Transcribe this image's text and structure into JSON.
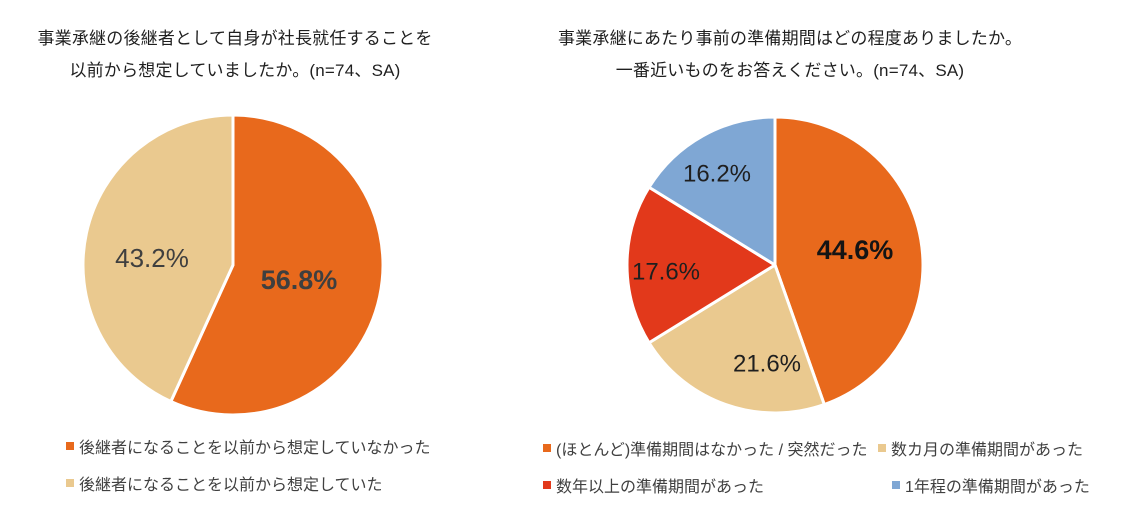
{
  "page_background": "#ffffff",
  "chart_data": [
    {
      "type": "pie",
      "title_lines": [
        "事業承継の後継者として自身が社長就任することを",
        "以前から想定していましたか。(n=74、SA)"
      ],
      "start_angle_deg": 0,
      "direction": "clockwise",
      "legend_position": "bottom",
      "slices": [
        {
          "label": "後継者になることを以前から想定していなかった",
          "value": 56.8,
          "display": "56.8%",
          "color": "#E8691C",
          "label_color": "#3F3F3F",
          "bold": true
        },
        {
          "label": "後継者になることを以前から想定していた",
          "value": 43.2,
          "display": "43.2%",
          "color": "#EAC98F",
          "label_color": "#3F3F3F",
          "bold": false
        }
      ]
    },
    {
      "type": "pie",
      "title_lines": [
        "事業承継にあたり事前の準備期間はどの程度ありましたか。",
        "一番近いものをお答えください。(n=74、SA)"
      ],
      "start_angle_deg": 0,
      "direction": "clockwise",
      "legend_position": "bottom",
      "slices": [
        {
          "label": "(ほとんど)準備期間はなかった / 突然だった",
          "value": 44.6,
          "display": "44.6%",
          "color": "#E8691C",
          "label_color": "#141414",
          "bold": true
        },
        {
          "label": "数カ月の準備期間があった",
          "value": 21.6,
          "display": "21.6%",
          "color": "#EAC98F",
          "label_color": "#1F1F1F",
          "bold": false
        },
        {
          "label": "数年以上の準備期間があった",
          "value": 17.6,
          "display": "17.6%",
          "color": "#E2391B",
          "label_color": "#1F1F1F",
          "bold": false
        },
        {
          "label": "1年程の準備期間があった",
          "value": 16.2,
          "display": "16.2%",
          "color": "#7FA7D4",
          "label_color": "#1F1F1F",
          "bold": false
        }
      ]
    }
  ]
}
